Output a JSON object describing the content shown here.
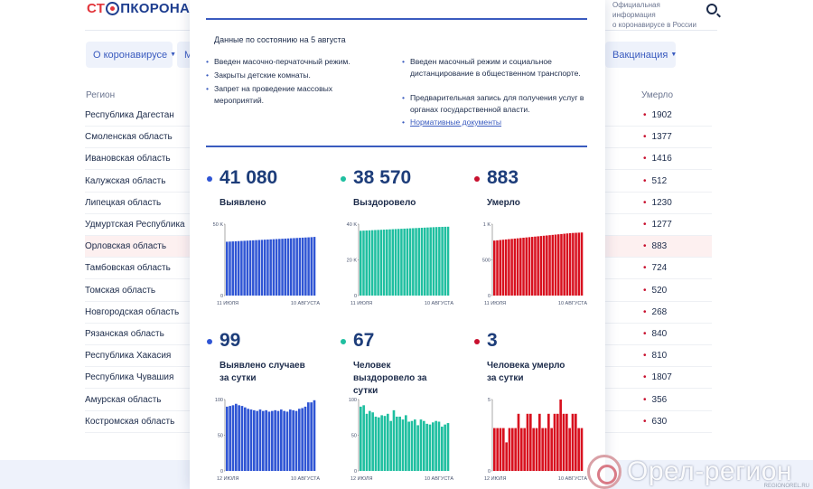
{
  "header": {
    "logo_left": "СТ",
    "logo_right": "ПКОРОНАВИ",
    "official_line1": "Официальная информация",
    "official_line2": "о коронавирусе в России"
  },
  "nav": {
    "about": "О коронавирусе",
    "second": "М",
    "vaccination": "Вакцинация"
  },
  "table": {
    "col_region": "Регион",
    "col_dead": "Умерло",
    "rows": [
      {
        "name": "Республика Дагестан",
        "dead": "1902"
      },
      {
        "name": "Смоленская область",
        "dead": "1377"
      },
      {
        "name": "Ивановская область",
        "dead": "1416"
      },
      {
        "name": "Калужская область",
        "dead": "512"
      },
      {
        "name": "Липецкая область",
        "dead": "1230"
      },
      {
        "name": "Удмуртская Республика",
        "dead": "1277"
      },
      {
        "name": "Орловская область",
        "dead": "883"
      },
      {
        "name": "Тамбовская область",
        "dead": "724"
      },
      {
        "name": "Томская область",
        "dead": "520"
      },
      {
        "name": "Новгородская область",
        "dead": "268"
      },
      {
        "name": "Рязанская область",
        "dead": "840"
      },
      {
        "name": "Республика Хакасия",
        "dead": "810"
      },
      {
        "name": "Республика Чувашия",
        "dead": "1807"
      },
      {
        "name": "Амурская область",
        "dead": "356"
      },
      {
        "name": "Костромская область",
        "dead": "630"
      }
    ]
  },
  "popup": {
    "asof": "Данные по состоянию на 5 августа",
    "left_bullets": [
      "Введен масочно-перчаточный режим.",
      "Закрыты детские комнаты.",
      "Запрет на проведение массовых мероприятий."
    ],
    "right_bullets": [
      "Введен масочный режим и социальное дистанцирование в общественном транспорте.",
      "Предварительная запись для получения услуг в органах государственной власти."
    ],
    "docs_link": "Нормативные документы",
    "stats": [
      {
        "value": "41 080",
        "label": "Выявлено",
        "color": "#2f55d4"
      },
      {
        "value": "38 570",
        "label": "Выздоровело",
        "color": "#1fbfa0"
      },
      {
        "value": "883",
        "label": "Умерло",
        "color": "#c8102e"
      },
      {
        "value": "99",
        "label": "Выявлено случаев за сутки",
        "color": "#2f55d4"
      },
      {
        "value": "67",
        "label": "Человек выздоровело за сутки",
        "color": "#1fbfa0"
      },
      {
        "value": "3",
        "label": "Человека умерло за сутки",
        "color": "#c8102e"
      }
    ]
  },
  "chart_data": [
    {
      "type": "bar",
      "color": "#2f55d4",
      "yticks": [
        {
          "v": 0,
          "t": "0"
        },
        {
          "v": 50000,
          "t": "50 K"
        }
      ],
      "ylim": [
        0,
        50000
      ],
      "xstart": "11 ИЮЛЯ",
      "xend": "10 АВГУСТА",
      "values": [
        37700,
        37810,
        37920,
        38030,
        38140,
        38250,
        38360,
        38470,
        38580,
        38690,
        38800,
        38910,
        39020,
        39130,
        39240,
        39350,
        39460,
        39570,
        39680,
        39790,
        39900,
        40010,
        40120,
        40230,
        40340,
        40450,
        40560,
        40670,
        40780,
        40900,
        41080
      ]
    },
    {
      "type": "bar",
      "color": "#1fbfa0",
      "yticks": [
        {
          "v": 0,
          "t": "0"
        },
        {
          "v": 20000,
          "t": "20 K"
        },
        {
          "v": 40000,
          "t": "40 K"
        }
      ],
      "ylim": [
        0,
        40000
      ],
      "xstart": "11 ИЮЛЯ",
      "xend": "10 АВГУСТА",
      "values": [
        36300,
        36380,
        36460,
        36540,
        36620,
        36700,
        36780,
        36860,
        36940,
        37020,
        37100,
        37180,
        37260,
        37340,
        37420,
        37500,
        37580,
        37660,
        37740,
        37820,
        37900,
        37980,
        38060,
        38140,
        38220,
        38300,
        38380,
        38440,
        38490,
        38530,
        38570
      ]
    },
    {
      "type": "bar",
      "color": "#d8101e",
      "yticks": [
        {
          "v": 0,
          "t": "0"
        },
        {
          "v": 500,
          "t": "500"
        },
        {
          "v": 1000,
          "t": "1 K"
        }
      ],
      "ylim": [
        0,
        1000
      ],
      "xstart": "11 ИЮЛЯ",
      "xend": "10 АВГУСТА",
      "values": [
        770,
        774,
        778,
        782,
        786,
        790,
        794,
        798,
        802,
        806,
        810,
        814,
        818,
        822,
        826,
        830,
        834,
        838,
        842,
        846,
        850,
        854,
        858,
        862,
        866,
        870,
        874,
        877,
        879,
        881,
        883
      ]
    },
    {
      "type": "bar",
      "color": "#2f55d4",
      "yticks": [
        {
          "v": 0,
          "t": "0"
        },
        {
          "v": 50,
          "t": "50"
        },
        {
          "v": 100,
          "t": "100"
        }
      ],
      "ylim": [
        0,
        100
      ],
      "xstart": "12 ИЮЛЯ",
      "xend": "10 АВГУСТА",
      "values": [
        90,
        91,
        92,
        94,
        92,
        91,
        89,
        87,
        86,
        85,
        84,
        86,
        84,
        85,
        83,
        84,
        85,
        84,
        86,
        84,
        83,
        86,
        85,
        84,
        87,
        88,
        90,
        96,
        96,
        99
      ]
    },
    {
      "type": "bar",
      "color": "#1fbfa0",
      "yticks": [
        {
          "v": 0,
          "t": "0"
        },
        {
          "v": 50,
          "t": "50"
        },
        {
          "v": 100,
          "t": "100"
        }
      ],
      "ylim": [
        0,
        100
      ],
      "xstart": "12 ИЮЛЯ",
      "xend": "10 АВГУСТА",
      "values": [
        90,
        92,
        80,
        84,
        82,
        76,
        75,
        78,
        77,
        80,
        70,
        85,
        76,
        76,
        72,
        78,
        69,
        70,
        72,
        64,
        72,
        70,
        66,
        65,
        68,
        70,
        69,
        62,
        65,
        67
      ]
    },
    {
      "type": "bar",
      "color": "#d8101e",
      "yticks": [
        {
          "v": 0,
          "t": "0"
        },
        {
          "v": 5,
          "t": "5"
        }
      ],
      "ylim": [
        0,
        5
      ],
      "xstart": "12 ИЮЛЯ",
      "xend": "10 АВГУСТА",
      "values": [
        3,
        3,
        3,
        3,
        2,
        3,
        3,
        3,
        4,
        3,
        3,
        4,
        4,
        3,
        3,
        4,
        3,
        3,
        4,
        3,
        4,
        4,
        5,
        4,
        4,
        3,
        4,
        4,
        3,
        3
      ]
    }
  ]
}
